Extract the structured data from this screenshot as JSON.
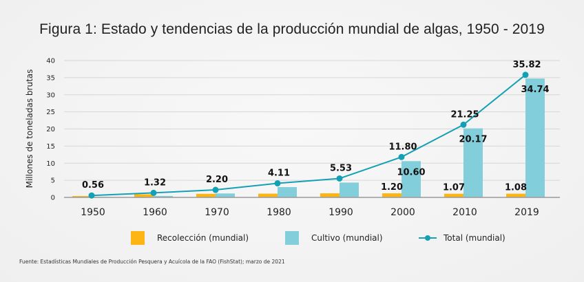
{
  "title": "Figura 1: Estado y tendencias de la producción mundial de algas, 1950 - 2019",
  "source": "Fuente: Estadísticas Mundiales de Producción Pesquera y Acuícola de la FAO (FishStat); marzo de 2021",
  "colors": {
    "recoleccion": "#FDB515",
    "cultivo": "#82CFDB",
    "total": "#14A0B4",
    "grid": "#D6D6D6",
    "axis": "#999999"
  },
  "legend": [
    {
      "label": "Recolección (mundial)",
      "kind": "bar",
      "series": "recoleccion"
    },
    {
      "label": "Cultivo (mundial)",
      "kind": "bar",
      "series": "cultivo"
    },
    {
      "label": "Total (mundial)",
      "kind": "line",
      "series": "total"
    }
  ],
  "chart_data": {
    "type": "bar",
    "title": "Figura 1: Estado y tendencias de la producción mundial de algas, 1950 - 2019",
    "xlabel": "",
    "ylabel": "Millones de toneladas brutas",
    "ylim": [
      0,
      40
    ],
    "yticks": [
      0,
      5,
      10,
      15,
      20,
      25,
      30,
      35,
      40
    ],
    "grid": true,
    "legend_position": "bottom",
    "categories": [
      "1950",
      "1960",
      "1970",
      "1980",
      "1990",
      "2000",
      "2010",
      "2019"
    ],
    "series": [
      {
        "name": "Recolección (mundial)",
        "key": "recoleccion",
        "type": "bar",
        "values": [
          0.4,
          0.9,
          1.05,
          1.1,
          1.2,
          1.2,
          1.07,
          1.08
        ],
        "labels": [
          null,
          null,
          null,
          null,
          null,
          "1.20",
          "1.07",
          "1.08"
        ]
      },
      {
        "name": "Cultivo (mundial)",
        "key": "cultivo",
        "type": "bar",
        "values": [
          0.16,
          0.42,
          1.15,
          3.01,
          4.33,
          10.6,
          20.17,
          34.74
        ],
        "labels": [
          null,
          null,
          null,
          null,
          null,
          "10.60",
          "20.17",
          "34.74"
        ]
      },
      {
        "name": "Total (mundial)",
        "key": "total",
        "type": "line",
        "values": [
          0.56,
          1.32,
          2.2,
          4.11,
          5.53,
          11.8,
          21.25,
          35.82
        ],
        "labels": [
          "0.56",
          "1.32",
          "2.20",
          "4.11",
          "5.53",
          "11.80",
          "21.25",
          "35.82"
        ]
      }
    ]
  }
}
